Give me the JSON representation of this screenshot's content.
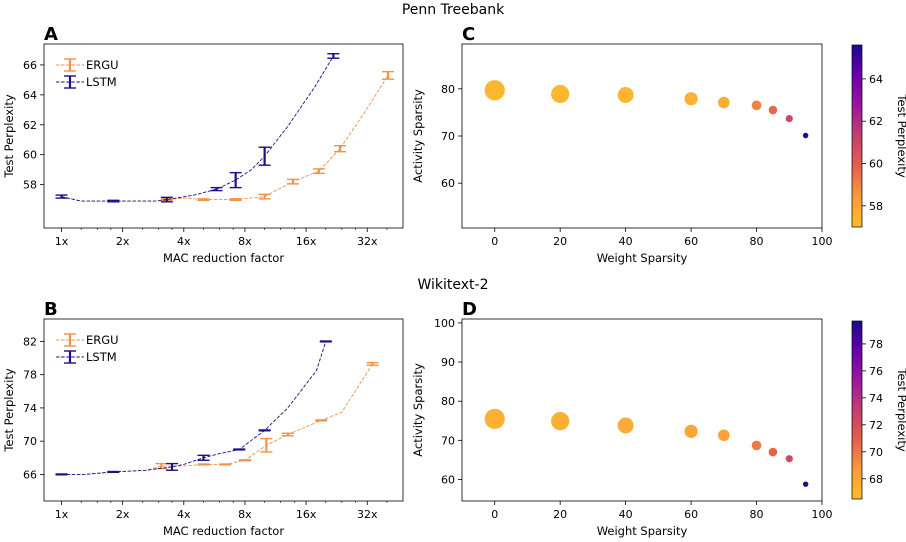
{
  "figure": {
    "top_title": "Penn Treebank",
    "bottom_title": "Wikitext-2"
  },
  "colors": {
    "ergu": "#f0924a",
    "lstm": "#1f1083",
    "colormap": [
      "#fdbb2e",
      "#f89b3c",
      "#e2614c",
      "#c43f6e",
      "#9c179e",
      "#6a00a8",
      "#1a0b8c"
    ]
  },
  "chart_data": [
    {
      "panel": "A",
      "type": "line",
      "xscale": "log2",
      "xlabel": "MAC reduction factor",
      "ylabel": "Test Perplexity",
      "xticks": [
        1,
        2,
        4,
        8,
        16,
        32
      ],
      "xtick_labels": [
        "1x",
        "2x",
        "4x",
        "8x",
        "16x",
        "32x"
      ],
      "yticks": [
        58,
        60,
        62,
        64,
        66
      ],
      "xlim": [
        0.82,
        48
      ],
      "ylim": [
        55.1,
        67.4
      ],
      "legend": "top-left",
      "series": [
        {
          "name": "ERGU",
          "x": [
            1,
            1.25,
            1.8,
            2.9,
            3.3,
            4.0,
            5.0,
            7.2,
            10.0,
            13.8,
            18.5,
            23.5,
            31.0,
            40.5
          ],
          "y": [
            57.2,
            56.9,
            56.9,
            56.9,
            57.0,
            57.1,
            57.0,
            57.0,
            57.2,
            58.2,
            58.9,
            60.4,
            62.8,
            65.3
          ],
          "err": [
            0.05,
            0.05,
            0.05,
            0.3,
            0.05,
            0.05,
            0.05,
            0.05,
            0.15,
            0.15,
            0.15,
            0.2,
            0.15,
            0.25
          ],
          "marker_x": [
            3.3,
            5.0,
            7.2,
            10.0,
            13.8,
            18.5,
            23.5,
            40.5
          ]
        },
        {
          "name": "LSTM",
          "x": [
            1,
            1.25,
            1.8,
            2.9,
            3.3,
            4.5,
            5.8,
            7.2,
            8.6,
            10.0,
            13.0,
            17.6,
            21.8
          ],
          "y": [
            57.2,
            56.9,
            56.9,
            56.9,
            57.0,
            57.3,
            57.7,
            58.3,
            59.0,
            59.9,
            61.9,
            64.5,
            66.6
          ],
          "err": [
            0.1,
            0.05,
            0.05,
            0.05,
            0.15,
            0.05,
            0.1,
            0.5,
            0.05,
            0.6,
            0.05,
            0.05,
            0.15
          ],
          "marker_x": [
            1,
            1.8,
            3.3,
            5.8,
            7.2,
            10.0,
            21.8
          ]
        }
      ]
    },
    {
      "panel": "B",
      "type": "line",
      "xscale": "log2",
      "xlabel": "MAC reduction factor",
      "ylabel": "Test Perplexity",
      "xticks": [
        1,
        2,
        4,
        8,
        16,
        32
      ],
      "xtick_labels": [
        "1x",
        "2x",
        "4x",
        "8x",
        "16x",
        "32x"
      ],
      "yticks": [
        66,
        70,
        74,
        78,
        82
      ],
      "xlim": [
        0.82,
        48
      ],
      "ylim": [
        62.8,
        84.7
      ],
      "legend": "top-left",
      "series": [
        {
          "name": "ERGU",
          "x": [
            1,
            1.3,
            1.8,
            2.6,
            3.1,
            4.0,
            5.0,
            6.4,
            8.0,
            10.2,
            13.0,
            19.0,
            24.0,
            34.0
          ],
          "y": [
            66.0,
            66.0,
            66.3,
            66.5,
            67.0,
            67.0,
            67.2,
            67.2,
            67.7,
            69.5,
            70.8,
            72.5,
            73.5,
            79.3
          ],
          "err": [
            0.05,
            0.05,
            0.05,
            0.05,
            0.3,
            0.05,
            0.05,
            0.05,
            0.05,
            0.8,
            0.15,
            0.05,
            0.15,
            0.15
          ],
          "marker_x": [
            3.1,
            5.0,
            6.4,
            8.0,
            10.2,
            13.0,
            19.0,
            34.0
          ]
        },
        {
          "name": "LSTM",
          "x": [
            1,
            1.3,
            1.8,
            2.6,
            3.5,
            4.0,
            5.0,
            6.0,
            7.5,
            10.0,
            13.0,
            18.0,
            20.0
          ],
          "y": [
            66.0,
            66.0,
            66.3,
            66.5,
            66.9,
            67.2,
            68.0,
            68.5,
            69.0,
            71.3,
            74.0,
            78.5,
            82.0
          ],
          "err": [
            0.05,
            0.05,
            0.05,
            0.05,
            0.4,
            0.05,
            0.3,
            0.05,
            0.05,
            0.05,
            0.05,
            0.05,
            0.05
          ],
          "marker_x": [
            1,
            1.8,
            3.5,
            5.0,
            7.5,
            10.0,
            20.0
          ]
        }
      ]
    },
    {
      "panel": "C",
      "type": "scatter",
      "xlabel": "Weight Sparsity",
      "ylabel": "Activity Sparsity",
      "xticks": [
        0,
        20,
        40,
        60,
        80,
        100
      ],
      "yticks": [
        60,
        70,
        80
      ],
      "xlim": [
        -10,
        100
      ],
      "ylim": [
        50.5,
        89.5
      ],
      "colorbar": {
        "label": "Test Perplexity",
        "range": [
          57.0,
          65.6
        ],
        "ticks": [
          58,
          60,
          62,
          64
        ]
      },
      "points": [
        {
          "x": 0,
          "y": 79.7,
          "perplexity": 57.2
        },
        {
          "x": 20,
          "y": 78.9,
          "perplexity": 57.2
        },
        {
          "x": 40,
          "y": 78.7,
          "perplexity": 57.3
        },
        {
          "x": 60,
          "y": 77.9,
          "perplexity": 57.4
        },
        {
          "x": 70,
          "y": 77.1,
          "perplexity": 57.6
        },
        {
          "x": 80,
          "y": 76.5,
          "perplexity": 59.0
        },
        {
          "x": 85,
          "y": 75.5,
          "perplexity": 59.7
        },
        {
          "x": 90,
          "y": 73.7,
          "perplexity": 60.9
        },
        {
          "x": 95,
          "y": 70.1,
          "perplexity": 65.5
        }
      ]
    },
    {
      "panel": "D",
      "type": "scatter",
      "xlabel": "Weight Sparsity",
      "ylabel": "Activity Sparsity",
      "xticks": [
        0,
        20,
        40,
        60,
        80,
        100
      ],
      "yticks": [
        60,
        70,
        80,
        90,
        100
      ],
      "xlim": [
        -10,
        100
      ],
      "ylim": [
        54.5,
        101.0
      ],
      "colorbar": {
        "label": "Test Perplexity",
        "range": [
          66.5,
          79.7
        ],
        "ticks": [
          68,
          70,
          72,
          74,
          76,
          78
        ]
      },
      "points": [
        {
          "x": 0,
          "y": 75.5,
          "perplexity": 67.2
        },
        {
          "x": 20,
          "y": 74.9,
          "perplexity": 67.3
        },
        {
          "x": 40,
          "y": 73.8,
          "perplexity": 67.5
        },
        {
          "x": 60,
          "y": 72.3,
          "perplexity": 67.9
        },
        {
          "x": 70,
          "y": 71.3,
          "perplexity": 68.2
        },
        {
          "x": 80,
          "y": 68.7,
          "perplexity": 69.9
        },
        {
          "x": 85,
          "y": 67.0,
          "perplexity": 70.8
        },
        {
          "x": 90,
          "y": 65.3,
          "perplexity": 72.4
        },
        {
          "x": 95,
          "y": 58.8,
          "perplexity": 79.5
        }
      ]
    }
  ]
}
